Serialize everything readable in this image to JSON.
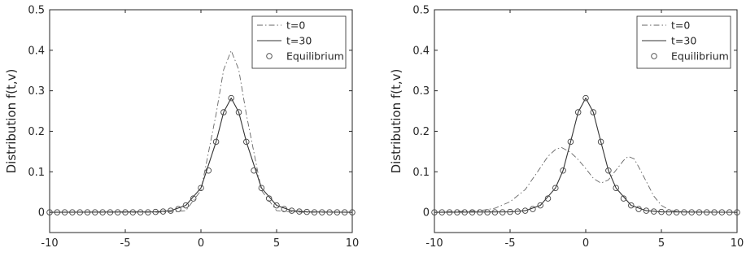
{
  "chart_data": [
    {
      "type": "line",
      "title": "",
      "xlabel": "",
      "ylabel": "Distribution f(t,v)",
      "xlim": [
        -10,
        10
      ],
      "ylim": [
        -0.05,
        0.5
      ],
      "xticks": [
        -10,
        -5,
        0,
        5,
        10
      ],
      "xtick_labels": [
        "-10",
        "-5",
        "0",
        "5",
        "10"
      ],
      "yticks": [
        0,
        0.1,
        0.2,
        0.3,
        0.4,
        0.5
      ],
      "ytick_labels": [
        "0",
        "0.1",
        "0.2",
        "0.3",
        "0.4",
        "0.5"
      ],
      "grid": false,
      "legend_position": "top-right",
      "series": [
        {
          "name": "t=0",
          "style": "dashdot",
          "x": [
            -10,
            -4,
            -3,
            -2,
            -1,
            0,
            1,
            1.5,
            2,
            2.5,
            3,
            4,
            5,
            6,
            7,
            10
          ],
          "y": [
            0,
            0,
            0,
            0.001,
            0.004,
            0.054,
            0.242,
            0.352,
            0.399,
            0.352,
            0.242,
            0.054,
            0.004,
            0.001,
            0,
            0
          ]
        },
        {
          "name": "t=30",
          "style": "solid",
          "x": [
            -10,
            -3,
            -2,
            -1,
            0,
            1,
            1.5,
            2,
            2.5,
            3,
            4,
            5,
            6,
            7,
            10
          ],
          "y": [
            0,
            0.001,
            0.004,
            0.017,
            0.06,
            0.174,
            0.247,
            0.282,
            0.247,
            0.174,
            0.06,
            0.017,
            0.004,
            0.001,
            0
          ]
        },
        {
          "name": "Equilibrium",
          "style": "markers",
          "marker": "circle",
          "x": [
            -10,
            -9.5,
            -9,
            -8.5,
            -8,
            -7.5,
            -7,
            -6.5,
            -6,
            -5.5,
            -5,
            -4.5,
            -4,
            -3.5,
            -3,
            -2.5,
            -2,
            -1.5,
            -1,
            -0.5,
            0,
            0.5,
            1,
            1.5,
            2,
            2.5,
            3,
            3.5,
            4,
            4.5,
            5,
            5.5,
            6,
            6.5,
            7,
            7.5,
            8,
            8.5,
            9,
            9.5,
            10
          ],
          "y": [
            0,
            0,
            0,
            0,
            0,
            0,
            0,
            0,
            0,
            0,
            0,
            0,
            0,
            0,
            0.001,
            0.002,
            0.004,
            0.008,
            0.017,
            0.034,
            0.06,
            0.103,
            0.174,
            0.247,
            0.282,
            0.247,
            0.174,
            0.103,
            0.06,
            0.034,
            0.017,
            0.008,
            0.004,
            0.002,
            0.001,
            0,
            0,
            0,
            0,
            0,
            0
          ]
        }
      ]
    },
    {
      "type": "line",
      "title": "",
      "xlabel": "",
      "ylabel": "Distribution f(t,v)",
      "xlim": [
        -10,
        10
      ],
      "ylim": [
        -0.05,
        0.5
      ],
      "xticks": [
        -10,
        -5,
        0,
        5,
        10
      ],
      "xtick_labels": [
        "-10",
        "-5",
        "0",
        "5",
        "10"
      ],
      "yticks": [
        0,
        0.1,
        0.2,
        0.3,
        0.4,
        0.5
      ],
      "ytick_labels": [
        "0",
        "0.1",
        "0.2",
        "0.3",
        "0.4",
        "0.5"
      ],
      "grid": false,
      "legend_position": "top-right",
      "series": [
        {
          "name": "t=0",
          "style": "dashdot",
          "x": [
            -10,
            -7,
            -6,
            -5,
            -4,
            -3,
            -2.5,
            -2,
            -1.6,
            -1,
            -0.5,
            0,
            0.5,
            1,
            1.5,
            2,
            2.5,
            2.8,
            3.2,
            3.5,
            4,
            4.5,
            5,
            5.5,
            6,
            7,
            10
          ],
          "y": [
            0,
            0.004,
            0.01,
            0.026,
            0.056,
            0.11,
            0.138,
            0.155,
            0.16,
            0.148,
            0.13,
            0.108,
            0.084,
            0.072,
            0.08,
            0.104,
            0.128,
            0.138,
            0.132,
            0.112,
            0.076,
            0.04,
            0.017,
            0.006,
            0.002,
            0,
            0
          ]
        },
        {
          "name": "t=30",
          "style": "solid",
          "x": [
            -10,
            -5,
            -4,
            -3,
            -2,
            -1.5,
            -1,
            -0.5,
            0,
            0.5,
            1,
            1.5,
            2,
            3,
            4,
            5,
            10
          ],
          "y": [
            0,
            0.001,
            0.004,
            0.017,
            0.06,
            0.103,
            0.174,
            0.247,
            0.282,
            0.247,
            0.174,
            0.103,
            0.06,
            0.017,
            0.004,
            0.001,
            0
          ]
        },
        {
          "name": "Equilibrium",
          "style": "markers",
          "marker": "circle",
          "x": [
            -10,
            -9.5,
            -9,
            -8.5,
            -8,
            -7.5,
            -7,
            -6.5,
            -6,
            -5.5,
            -5,
            -4.5,
            -4,
            -3.5,
            -3,
            -2.5,
            -2,
            -1.5,
            -1,
            -0.5,
            0,
            0.5,
            1,
            1.5,
            2,
            2.5,
            3,
            3.5,
            4,
            4.5,
            5,
            5.5,
            6,
            6.5,
            7,
            7.5,
            8,
            8.5,
            9,
            9.5,
            10
          ],
          "y": [
            0,
            0,
            0,
            0,
            0,
            0,
            0,
            0,
            0,
            0,
            0.001,
            0.002,
            0.004,
            0.008,
            0.017,
            0.034,
            0.06,
            0.103,
            0.174,
            0.247,
            0.282,
            0.247,
            0.174,
            0.103,
            0.06,
            0.034,
            0.017,
            0.008,
            0.004,
            0.002,
            0.001,
            0,
            0,
            0,
            0,
            0,
            0,
            0,
            0,
            0,
            0
          ]
        }
      ]
    }
  ]
}
